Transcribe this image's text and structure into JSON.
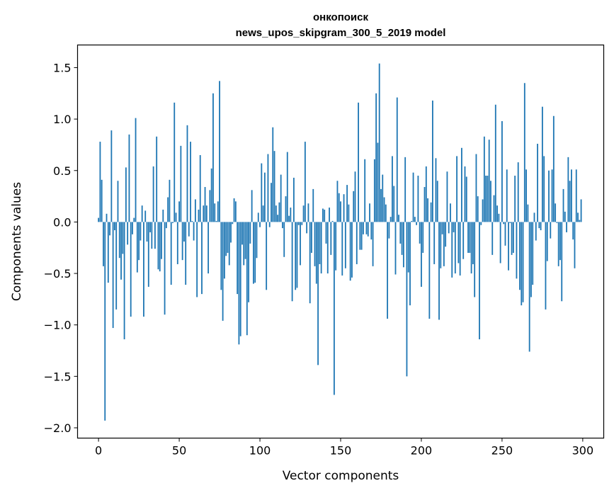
{
  "chart_data": {
    "type": "bar",
    "title": "онкопоиск",
    "subtitle": "news_upos_skipgram_300_5_2019 model",
    "xlabel": "Vector components",
    "ylabel": "Components values",
    "xlim": [
      -13,
      313
    ],
    "ylim": [
      -2.1,
      1.72
    ],
    "xticks": [
      0,
      50,
      100,
      150,
      200,
      250,
      300
    ],
    "xtick_labels": [
      "0",
      "50",
      "100",
      "150",
      "200",
      "250",
      "300"
    ],
    "yticks": [
      1.5,
      1.0,
      0.5,
      0.0,
      -0.5,
      -1.0,
      -1.5,
      -2.0
    ],
    "ytick_labels": [
      "1.5",
      "1.0",
      "0.5",
      "0.0",
      "−0.5",
      "−1.0",
      "−1.5",
      "−2.0"
    ],
    "grid": false,
    "color": "#1f77b4",
    "values": [
      0.04,
      0.78,
      0.41,
      -0.43,
      -1.93,
      0.08,
      -0.59,
      -0.13,
      0.89,
      -1.03,
      -0.08,
      -0.85,
      0.4,
      -0.35,
      -0.56,
      -0.31,
      -1.14,
      0.53,
      -0.22,
      0.85,
      -0.92,
      -0.12,
      0.04,
      1.01,
      -0.49,
      -0.37,
      -0.18,
      0.16,
      -0.92,
      0.11,
      -0.19,
      -0.63,
      -0.1,
      -0.26,
      0.54,
      -0.26,
      0.83,
      -0.46,
      -0.48,
      -0.36,
      0.12,
      -0.9,
      -0.06,
      0.24,
      0.41,
      -0.61,
      -0.01,
      1.16,
      0.09,
      -0.41,
      0.2,
      0.74,
      -0.37,
      -0.19,
      -0.61,
      0.94,
      -0.14,
      0.78,
      0.01,
      -0.18,
      0.22,
      -0.73,
      0.12,
      0.65,
      -0.7,
      0.16,
      0.34,
      0.16,
      -0.5,
      0.31,
      0.52,
      1.25,
      0.18,
      0.01,
      0.2,
      1.37,
      -0.66,
      -0.96,
      -0.55,
      -0.33,
      -0.3,
      -0.42,
      -0.2,
      -0.02,
      0.23,
      0.2,
      -0.7,
      -1.19,
      -1.11,
      -0.22,
      -0.42,
      -0.36,
      -1.1,
      -0.78,
      -0.21,
      0.31,
      -0.6,
      -0.59,
      -0.35,
      0.09,
      -0.05,
      0.57,
      0.16,
      0.48,
      -0.66,
      0.66,
      -0.05,
      0.38,
      0.92,
      0.69,
      0.16,
      0.07,
      0.19,
      0.46,
      -0.06,
      -0.34,
      0.25,
      0.68,
      0.06,
      0.14,
      -0.77,
      0.43,
      -0.66,
      -0.64,
      -0.03,
      -0.42,
      -0.03,
      0.16,
      0.78,
      -0.11,
      0.18,
      -0.79,
      -0.3,
      0.32,
      -0.43,
      -0.6,
      -1.39,
      -0.41,
      -0.5,
      0.13,
      0.12,
      -0.21,
      -0.5,
      0.14,
      -0.32,
      0.01,
      -1.68,
      -0.47,
      0.4,
      0.28,
      0.2,
      -0.52,
      0.27,
      -0.45,
      0.36,
      0.17,
      -0.57,
      -0.54,
      0.3,
      0.49,
      -0.41,
      1.16,
      -0.27,
      -0.27,
      -0.12,
      0.61,
      -0.12,
      -0.14,
      0.18,
      -0.17,
      -0.43,
      0.61,
      1.25,
      0.77,
      1.54,
      0.32,
      0.46,
      0.24,
      0.17,
      -0.94,
      -0.16,
      0.05,
      0.64,
      0.35,
      -0.51,
      1.21,
      0.07,
      -0.21,
      -0.32,
      -0.44,
      0.63,
      -1.5,
      -0.49,
      -0.81,
      0.01,
      0.48,
      0.05,
      -0.03,
      0.45,
      -0.21,
      -0.63,
      -0.3,
      0.34,
      0.54,
      0.23,
      -0.94,
      0.19,
      1.18,
      -0.41,
      0.62,
      0.4,
      -0.95,
      -0.45,
      -0.12,
      -0.43,
      -0.24,
      0.49,
      -0.11,
      0.18,
      -0.54,
      -0.1,
      -0.5,
      0.64,
      -0.4,
      -0.52,
      0.72,
      -0.36,
      0.54,
      0.44,
      -0.3,
      -0.3,
      -0.5,
      -0.41,
      -0.73,
      0.66,
      0.25,
      -1.14,
      -0.03,
      0.22,
      0.83,
      0.45,
      0.45,
      0.8,
      0.4,
      -0.32,
      0.26,
      1.14,
      0.16,
      0.08,
      -0.4,
      0.98,
      -0.02,
      -0.23,
      0.51,
      -0.47,
      -0.01,
      -0.32,
      -0.3,
      0.45,
      -0.55,
      0.58,
      -0.66,
      -0.81,
      -0.78,
      1.35,
      0.51,
      0.17,
      -1.26,
      -0.73,
      -0.61,
      0.09,
      -0.18,
      0.76,
      -0.06,
      -0.08,
      1.12,
      0.64,
      -0.85,
      -0.38,
      0.5,
      -0.16,
      0.51,
      1.03,
      0.18,
      -0.01,
      -0.43,
      -0.37,
      -0.77,
      0.32,
      0.1,
      -0.1,
      0.63,
      0.4,
      0.51,
      -0.17,
      -0.45,
      0.51,
      0.09,
      0.02,
      0.22
    ]
  }
}
